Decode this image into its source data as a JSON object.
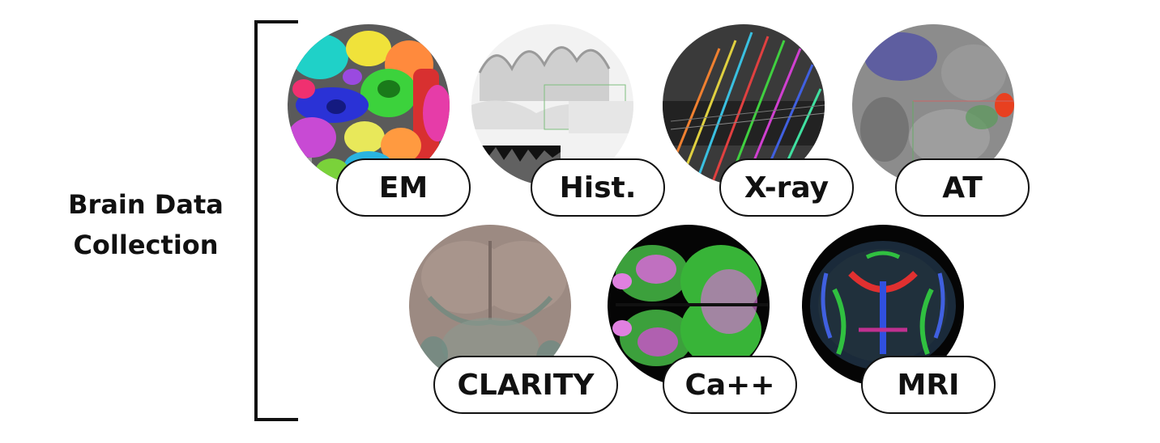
{
  "title": {
    "line1": "Brain Data",
    "line2": "Collection"
  },
  "modalities": [
    {
      "label": "EM"
    },
    {
      "label": "Hist."
    },
    {
      "label": "X-ray"
    },
    {
      "label": "AT"
    },
    {
      "label": "CLARITY"
    },
    {
      "label": "Ca++"
    },
    {
      "label": "MRI"
    }
  ]
}
